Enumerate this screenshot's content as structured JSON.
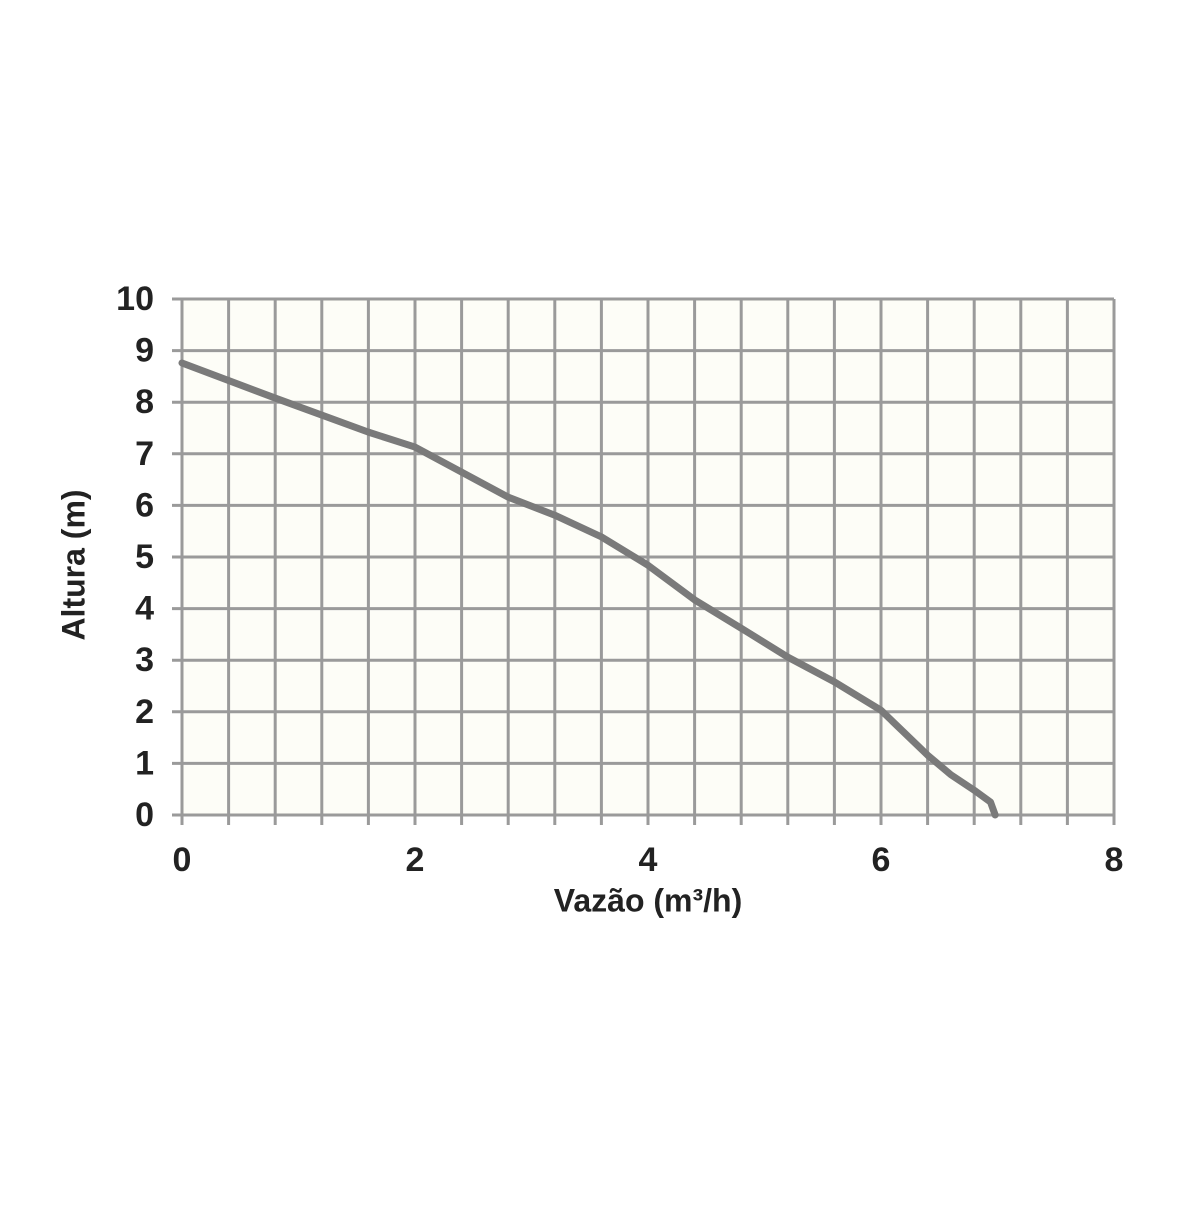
{
  "chart_data": {
    "type": "line",
    "x_label": "Vazão (m³/h)",
    "y_label": "Altura (m)",
    "xlim": [
      0,
      8
    ],
    "xticks": [
      0,
      2,
      4,
      6,
      8
    ],
    "ylim": [
      0,
      10
    ],
    "yticks": [
      0,
      1,
      2,
      3,
      4,
      5,
      6,
      7,
      8,
      9,
      10
    ],
    "xgrid": [
      0,
      0.4,
      0.8,
      1.2,
      1.6,
      2,
      2.4,
      2.8,
      3.2,
      3.6,
      4,
      4.4,
      4.8,
      5.2,
      5.6,
      6,
      6.4,
      6.8,
      7.2,
      7.6,
      8
    ],
    "grid": true,
    "grid_color": "#9a9a9a",
    "background": "#fdfdf7",
    "series": [
      {
        "color": "#7a7a7a",
        "x": [
          0,
          0.8,
          1.6,
          2.0,
          2.8,
          3.2,
          3.6,
          4.0,
          4.4,
          4.8,
          5.2,
          5.6,
          6.0,
          6.4,
          6.6,
          6.8,
          6.94,
          6.98
        ],
        "values": [
          8.76,
          8.08,
          7.42,
          7.13,
          6.16,
          5.81,
          5.39,
          4.84,
          4.17,
          3.62,
          3.06,
          2.58,
          2.03,
          1.16,
          0.78,
          0.48,
          0.25,
          0
        ]
      }
    ]
  }
}
